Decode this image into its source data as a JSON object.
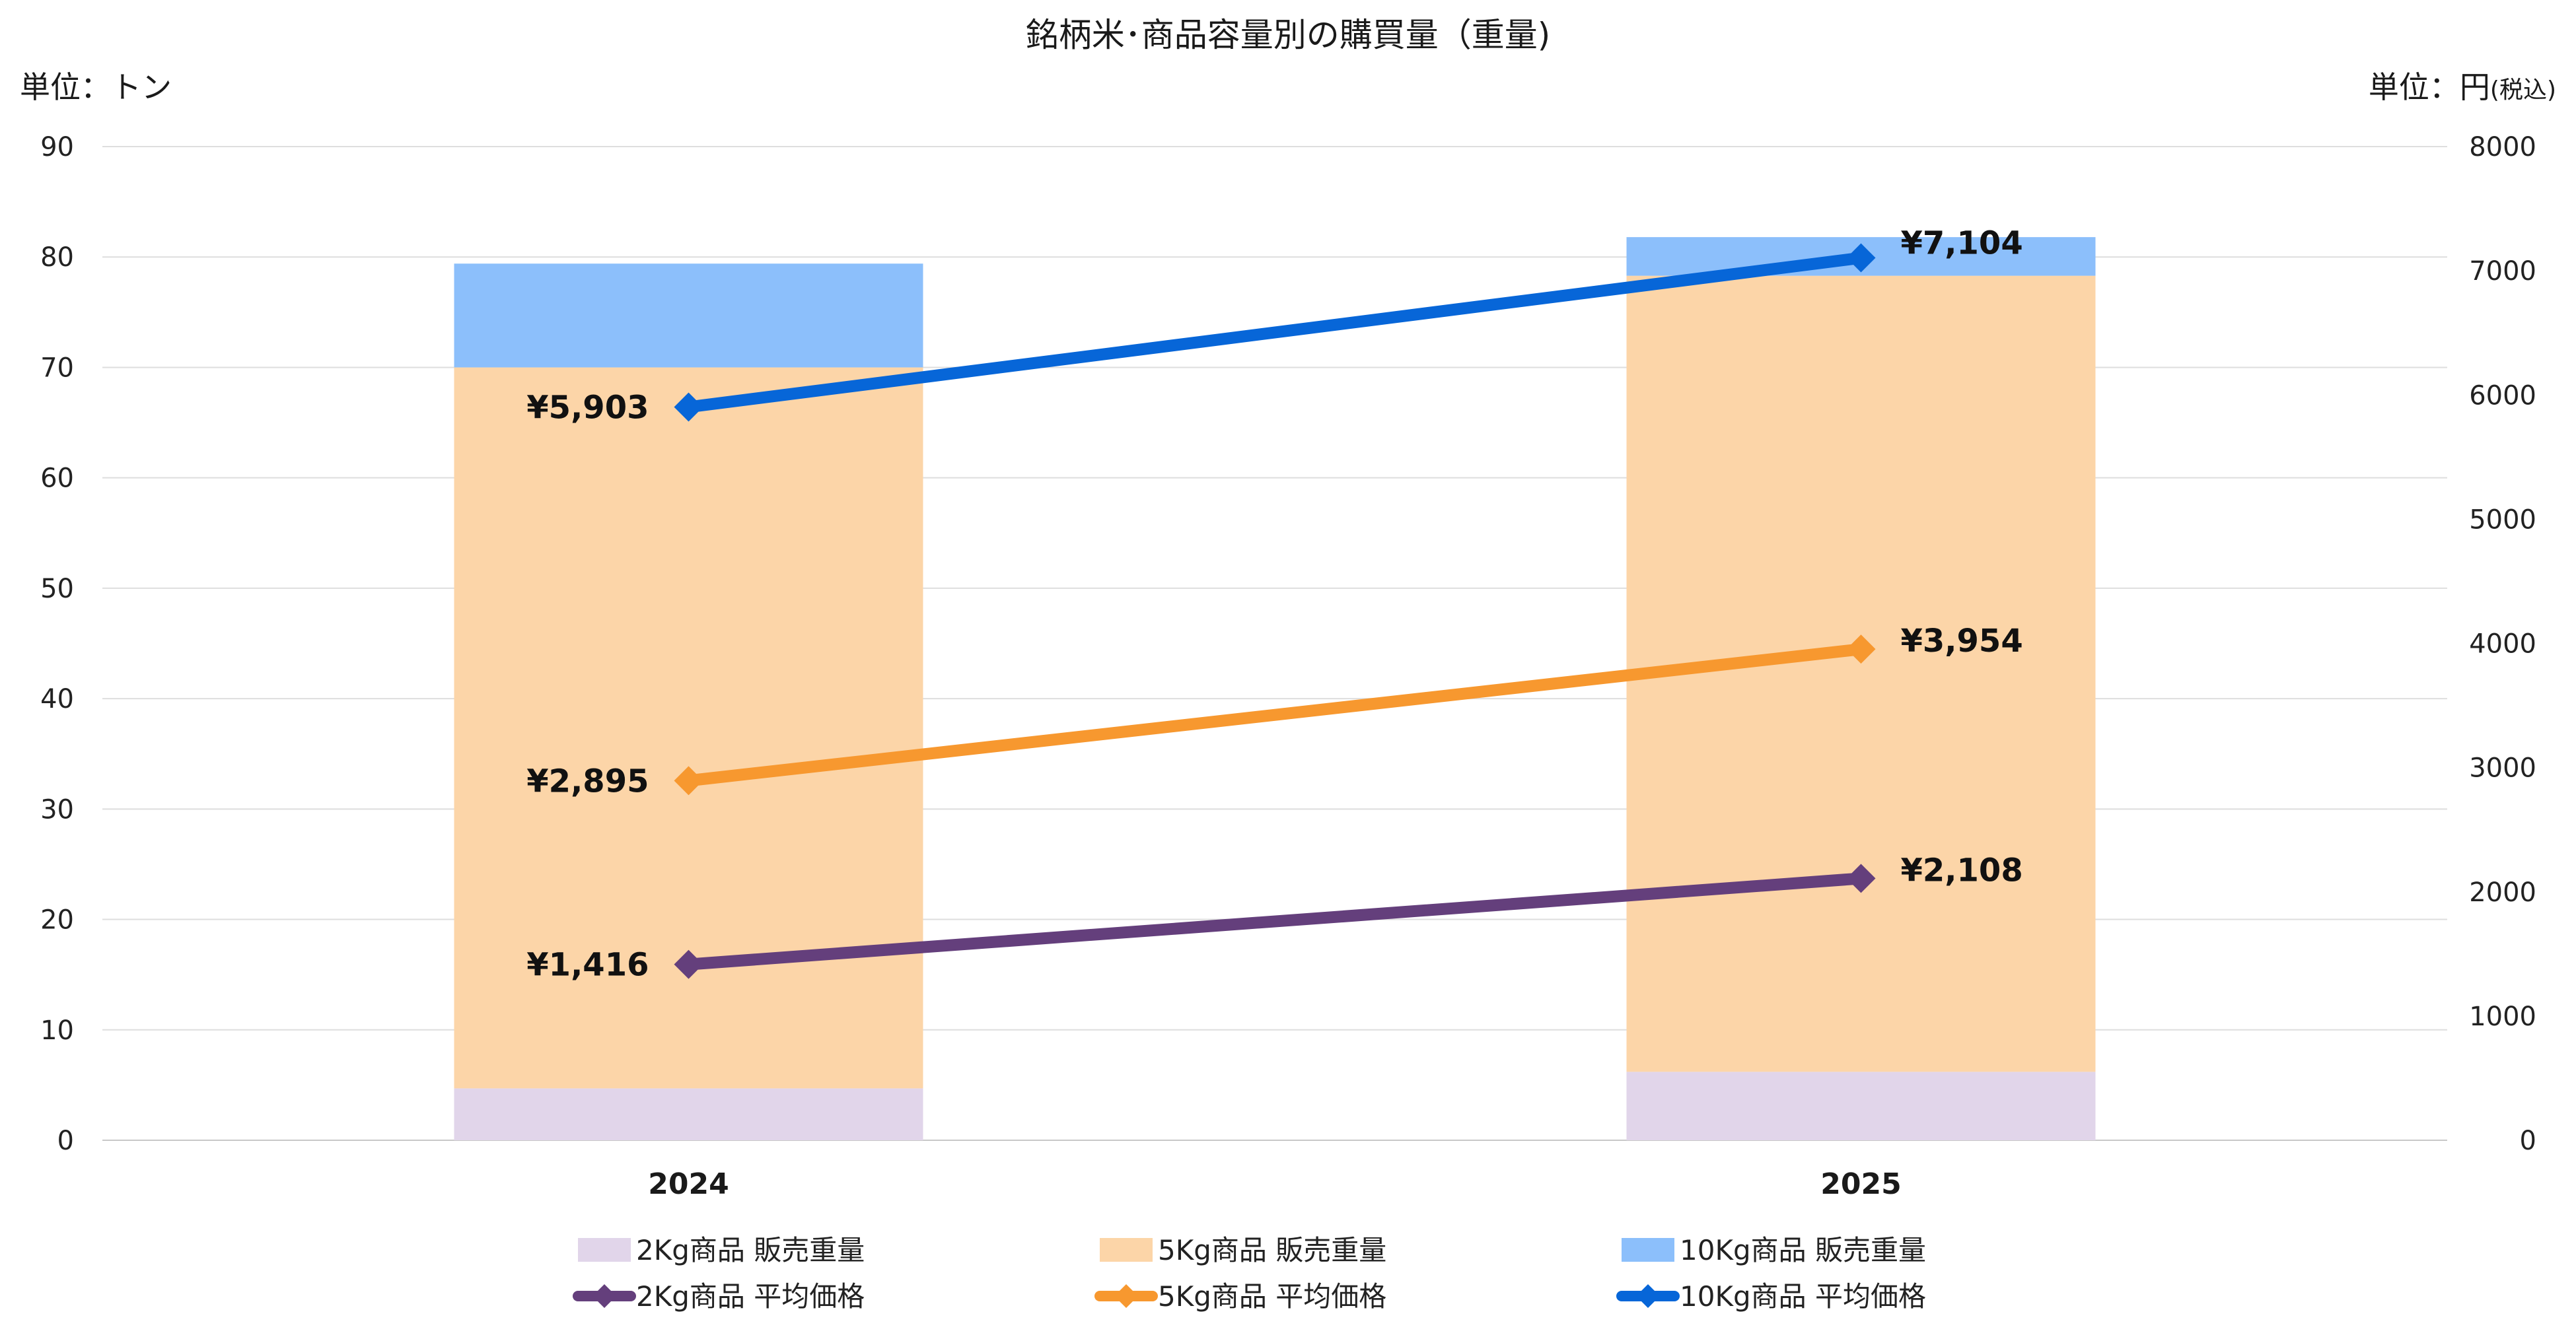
{
  "chart_data": {
    "type": "bar+line",
    "title": "銘柄米･商品容量別の購買量（重量)",
    "left_axis": {
      "unit_label": "単位：トン",
      "range": [
        0,
        90
      ],
      "ticks": [
        "0",
        "10",
        "20",
        "30",
        "40",
        "50",
        "60",
        "70",
        "80",
        "90"
      ]
    },
    "right_axis": {
      "unit_label": "単位：円",
      "unit_suffix": "(税込)",
      "range": [
        0,
        8000
      ],
      "ticks": [
        "0",
        "1000",
        "2000",
        "3000",
        "4000",
        "5000",
        "6000",
        "7000",
        "8000"
      ]
    },
    "categories": [
      "2024",
      "2025"
    ],
    "bar_series": [
      {
        "name": "2Kg商品 販売重量",
        "values": [
          4.7,
          6.2
        ],
        "color": "#e1d5ea"
      },
      {
        "name": "5Kg商品 販売重量",
        "values": [
          65.3,
          72.1
        ],
        "color": "#fcd5a8"
      },
      {
        "name": "10Kg商品 販売重量",
        "values": [
          9.4,
          3.5
        ],
        "color": "#8cbffb"
      }
    ],
    "line_series": [
      {
        "name": "2Kg商品 平均価格",
        "values": [
          1416,
          2108
        ],
        "labels": [
          "¥1,416",
          "¥2,108"
        ],
        "color": "#643f7c"
      },
      {
        "name": "5Kg商品 平均価格",
        "values": [
          2895,
          3954
        ],
        "labels": [
          "¥2,895",
          "¥3,954"
        ],
        "color": "#f7982f"
      },
      {
        "name": "10Kg商品 平均価格",
        "values": [
          5903,
          7104
        ],
        "labels": [
          "¥5,903",
          "¥7,104"
        ],
        "color": "#0766d8"
      }
    ],
    "legend": {
      "position": "bottom",
      "items": [
        "2Kg商品 販売重量",
        "5Kg商品 販売重量",
        "10Kg商品 販売重量",
        "2Kg商品 平均価格",
        "5Kg商品 平均価格",
        "10Kg商品 平均価格"
      ]
    },
    "grid": true
  }
}
